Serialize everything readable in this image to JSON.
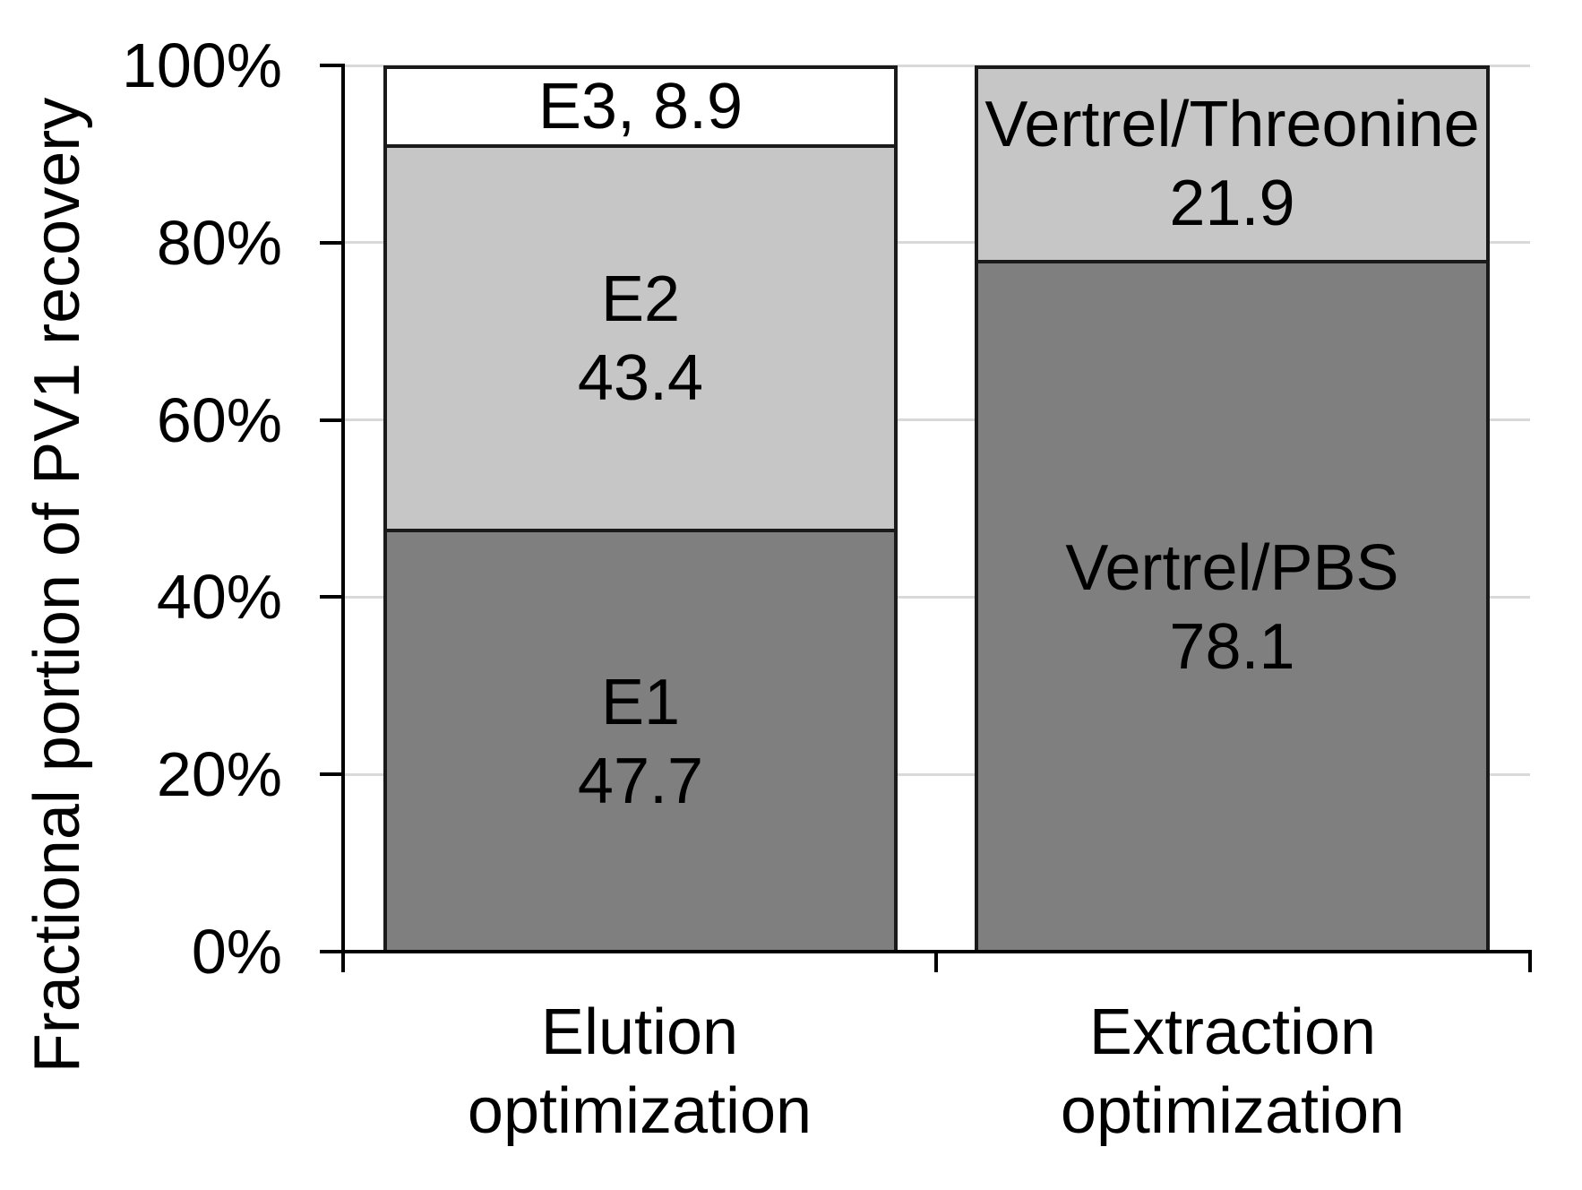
{
  "chart_data": {
    "type": "bar",
    "stacked": true,
    "unit": "percent",
    "title": "",
    "xlabel": "",
    "ylabel": "Fractional portion of PV1 recovery",
    "ylim": [
      0,
      100
    ],
    "y_ticks": [
      "0%",
      "20%",
      "40%",
      "60%",
      "80%",
      "100%"
    ],
    "grid": true,
    "legend": false,
    "categories": [
      "Elution optimization",
      "Extraction optimization"
    ],
    "bars": [
      {
        "category_line1": "Elution",
        "category_line2": "optimization",
        "segments": [
          {
            "name": "E1",
            "value": 47.7,
            "fill": "#7f7f7f",
            "label_line1": "E1",
            "label_line2": "47.7"
          },
          {
            "name": "E2",
            "value": 43.4,
            "fill": "#c6c6c6",
            "label_line1": "E2",
            "label_line2": "43.4"
          },
          {
            "name": "E3",
            "value": 8.9,
            "fill": "#ffffff",
            "label_line1": "E3, 8.9"
          }
        ]
      },
      {
        "category_line1": "Extraction",
        "category_line2": "optimization",
        "segments": [
          {
            "name": "Vertrel/PBS",
            "value": 78.1,
            "fill": "#7f7f7f",
            "label_line1": "Vertrel/PBS",
            "label_line2": "78.1"
          },
          {
            "name": "Vertrel/Threonine",
            "value": 21.9,
            "fill": "#c6c6c6",
            "label_line1": "Vertrel/Threonine",
            "label_line2": "21.9"
          }
        ]
      }
    ],
    "colors": {
      "dark_gray": "#7f7f7f",
      "light_gray": "#c6c6c6",
      "white": "#ffffff",
      "segment_border": "#1a1a1a",
      "gridline": "#d9d9d9",
      "axis": "#000000",
      "text": "#000000"
    }
  }
}
